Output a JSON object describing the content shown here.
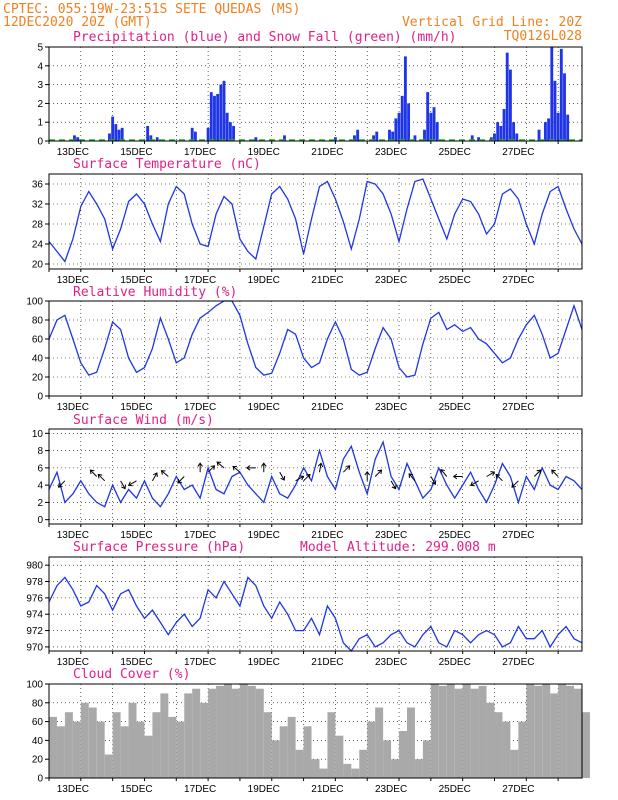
{
  "header": {
    "line1_left": "CPTEC:  055:19W-23:51S  SETE QUEDAS (MS)",
    "line2_left": "12DEC2020 20Z (GMT)",
    "line2_right": "Vertical Grid Line: 20Z",
    "line3_right": "TQ0126L028"
  },
  "colors": {
    "header": "#f08020",
    "titles": "#e0208a",
    "line": "#1f35e6",
    "snow": "#22b022",
    "cloud": "#a9a9a9"
  },
  "chart_data": [
    {
      "type": "bar",
      "title": "Precipitation (blue) and Snow Fall (green) (mm/h)",
      "ylim": [
        0,
        5
      ],
      "yticks": [
        0,
        1,
        2,
        3,
        4,
        5
      ],
      "x_tick_labels": [
        "13DEC",
        "15DEC",
        "17DEC",
        "19DEC",
        "21DEC",
        "23DEC",
        "25DEC",
        "27DEC"
      ],
      "series": [
        {
          "name": "Precipitation",
          "values": [
            [
              0.8,
              0.3
            ],
            [
              0.9,
              0.2
            ],
            [
              1.9,
              0.4
            ],
            [
              2.0,
              1.3
            ],
            [
              2.1,
              0.9
            ],
            [
              2.2,
              0.6
            ],
            [
              2.3,
              0.7
            ],
            [
              3.1,
              0.8
            ],
            [
              3.2,
              0.3
            ],
            [
              3.4,
              0.2
            ],
            [
              4.5,
              0.7
            ],
            [
              4.6,
              0.5
            ],
            [
              5.0,
              0.7
            ],
            [
              5.1,
              2.6
            ],
            [
              5.2,
              2.4
            ],
            [
              5.3,
              2.5
            ],
            [
              5.4,
              3.0
            ],
            [
              5.5,
              3.2
            ],
            [
              5.6,
              1.5
            ],
            [
              5.7,
              1.0
            ],
            [
              5.8,
              0.8
            ],
            [
              6.5,
              0.2
            ],
            [
              7.4,
              0.3
            ],
            [
              9.0,
              0.2
            ],
            [
              9.6,
              0.3
            ],
            [
              9.7,
              0.6
            ],
            [
              10.2,
              0.3
            ],
            [
              10.3,
              0.5
            ],
            [
              10.7,
              0.6
            ],
            [
              10.8,
              0.5
            ],
            [
              10.9,
              1.2
            ],
            [
              11.0,
              1.5
            ],
            [
              11.1,
              2.4
            ],
            [
              11.2,
              4.5
            ],
            [
              11.3,
              2.0
            ],
            [
              11.5,
              0.3
            ],
            [
              11.8,
              0.6
            ],
            [
              11.9,
              2.6
            ],
            [
              12.0,
              1.5
            ],
            [
              12.1,
              1.8
            ],
            [
              12.2,
              1.0
            ],
            [
              13.3,
              0.3
            ],
            [
              13.5,
              0.2
            ],
            [
              13.9,
              0.2
            ],
            [
              14.0,
              0.4
            ],
            [
              14.1,
              1.0
            ],
            [
              14.2,
              0.8
            ],
            [
              14.3,
              1.7
            ],
            [
              14.4,
              4.7
            ],
            [
              14.5,
              3.8
            ],
            [
              14.6,
              1.0
            ],
            [
              14.7,
              0.4
            ],
            [
              15.4,
              0.6
            ],
            [
              15.6,
              1.0
            ],
            [
              15.7,
              1.2
            ],
            [
              15.8,
              5.0
            ],
            [
              15.9,
              3.2
            ],
            [
              16.0,
              1.5
            ],
            [
              16.1,
              4.9
            ],
            [
              16.2,
              3.6
            ],
            [
              16.3,
              1.4
            ]
          ]
        },
        {
          "name": "Snow Fall",
          "values": []
        }
      ]
    },
    {
      "type": "line",
      "title": "Surface Temperature (nC)",
      "ylim": [
        19,
        38
      ],
      "yticks": [
        20,
        24,
        28,
        32,
        36
      ],
      "x_tick_labels": [
        "13DEC",
        "15DEC",
        "17DEC",
        "19DEC",
        "21DEC",
        "23DEC",
        "25DEC",
        "27DEC"
      ],
      "x": [
        0.0,
        0.25,
        0.5,
        0.75,
        1.0,
        1.25,
        1.5,
        1.75,
        2.0,
        2.25,
        2.5,
        2.75,
        3.0,
        3.25,
        3.5,
        3.75,
        4.0,
        4.25,
        4.5,
        4.75,
        5.0,
        5.25,
        5.5,
        5.75,
        6.0,
        6.25,
        6.5,
        6.75,
        7.0,
        7.25,
        7.5,
        7.75,
        8.0,
        8.25,
        8.5,
        8.75,
        9.0,
        9.25,
        9.5,
        9.75,
        10.0,
        10.25,
        10.5,
        10.75,
        11.0,
        11.25,
        11.5,
        11.75,
        12.0,
        12.25,
        12.5,
        12.75,
        13.0,
        13.25,
        13.5,
        13.75,
        14.0,
        14.25,
        14.5,
        14.75,
        15.0,
        15.25,
        15.5,
        15.75,
        16.0,
        16.25,
        16.5,
        16.75
      ],
      "values": [
        24.5,
        22.5,
        20.5,
        25.0,
        31.5,
        34.5,
        32.0,
        29.0,
        23.0,
        27.0,
        32.5,
        34.0,
        32.0,
        28.0,
        24.5,
        32.0,
        35.5,
        34.0,
        28.0,
        24.0,
        23.5,
        30.0,
        33.5,
        32.0,
        25.0,
        22.5,
        21.0,
        27.5,
        34.0,
        35.5,
        33.0,
        29.0,
        22.0,
        29.0,
        35.5,
        36.5,
        33.0,
        28.5,
        23.0,
        29.0,
        36.5,
        36.0,
        34.0,
        30.0,
        24.5,
        31.0,
        36.5,
        37.0,
        33.0,
        29.0,
        25.0,
        30.0,
        33.0,
        32.5,
        30.0,
        26.0,
        28.0,
        34.0,
        35.0,
        33.0,
        28.0,
        24.0,
        30.0,
        34.5,
        35.5,
        31.0,
        27.0,
        24.0
      ]
    },
    {
      "type": "line",
      "title": "Relative Humidity (%)",
      "ylim": [
        0,
        100
      ],
      "yticks": [
        0,
        20,
        40,
        60,
        80,
        100
      ],
      "x_tick_labels": [
        "13DEC",
        "15DEC",
        "17DEC",
        "19DEC",
        "21DEC",
        "23DEC",
        "25DEC",
        "27DEC"
      ],
      "x": [
        0.0,
        0.25,
        0.5,
        0.75,
        1.0,
        1.25,
        1.5,
        1.75,
        2.0,
        2.25,
        2.5,
        2.75,
        3.0,
        3.25,
        3.5,
        3.75,
        4.0,
        4.25,
        4.5,
        4.75,
        5.0,
        5.25,
        5.5,
        5.75,
        6.0,
        6.25,
        6.5,
        6.75,
        7.0,
        7.25,
        7.5,
        7.75,
        8.0,
        8.25,
        8.5,
        8.75,
        9.0,
        9.25,
        9.5,
        9.75,
        10.0,
        10.25,
        10.5,
        10.75,
        11.0,
        11.25,
        11.5,
        11.75,
        12.0,
        12.25,
        12.5,
        12.75,
        13.0,
        13.25,
        13.5,
        13.75,
        14.0,
        14.25,
        14.5,
        14.75,
        15.0,
        15.25,
        15.5,
        15.75,
        16.0,
        16.25,
        16.5,
        16.75
      ],
      "values": [
        60,
        80,
        85,
        60,
        35,
        22,
        25,
        50,
        78,
        70,
        40,
        25,
        30,
        50,
        82,
        60,
        35,
        40,
        65,
        82,
        88,
        95,
        100,
        100,
        85,
        55,
        30,
        22,
        24,
        45,
        70,
        65,
        40,
        30,
        35,
        60,
        78,
        60,
        28,
        22,
        25,
        50,
        72,
        60,
        30,
        20,
        22,
        55,
        82,
        88,
        70,
        75,
        68,
        72,
        60,
        55,
        45,
        35,
        40,
        60,
        75,
        85,
        65,
        40,
        45,
        70,
        95,
        70
      ]
    },
    {
      "type": "line",
      "title": "Surface Wind (m/s)",
      "ylim": [
        -0.5,
        10.5
      ],
      "yticks": [
        0,
        2,
        4,
        6,
        8,
        10
      ],
      "x_tick_labels": [
        "13DEC",
        "15DEC",
        "17DEC",
        "19DEC",
        "21DEC",
        "23DEC",
        "25DEC",
        "27DEC"
      ],
      "x": [
        0.0,
        0.25,
        0.5,
        0.75,
        1.0,
        1.25,
        1.5,
        1.75,
        2.0,
        2.25,
        2.5,
        2.75,
        3.0,
        3.25,
        3.5,
        3.75,
        4.0,
        4.25,
        4.5,
        4.75,
        5.0,
        5.25,
        5.5,
        5.75,
        6.0,
        6.25,
        6.5,
        6.75,
        7.0,
        7.25,
        7.5,
        7.75,
        8.0,
        8.25,
        8.5,
        8.75,
        9.0,
        9.25,
        9.5,
        9.75,
        10.0,
        10.25,
        10.5,
        10.75,
        11.0,
        11.25,
        11.5,
        11.75,
        12.0,
        12.25,
        12.5,
        12.75,
        13.0,
        13.25,
        13.5,
        13.75,
        14.0,
        14.25,
        14.5,
        14.75,
        15.0,
        15.25,
        15.5,
        15.75,
        16.0,
        16.25,
        16.5,
        16.75
      ],
      "values": [
        3.5,
        5.5,
        2.0,
        3.0,
        4.5,
        3.0,
        2.0,
        1.5,
        4.0,
        2.0,
        3.5,
        2.5,
        4.5,
        2.5,
        1.5,
        3.0,
        5.0,
        3.5,
        4.0,
        2.5,
        6.0,
        3.5,
        3.0,
        5.0,
        5.5,
        4.0,
        3.0,
        2.0,
        5.0,
        3.0,
        2.5,
        4.0,
        6.0,
        4.5,
        8.0,
        5.0,
        3.5,
        7.0,
        8.5,
        5.5,
        3.0,
        7.0,
        9.0,
        5.0,
        3.5,
        6.5,
        4.5,
        2.5,
        3.5,
        6.0,
        4.0,
        2.5,
        4.0,
        5.5,
        3.5,
        2.0,
        4.0,
        6.5,
        5.0,
        2.0,
        5.0,
        3.5,
        6.0,
        4.0,
        3.5,
        5.0,
        4.5,
        3.5
      ],
      "arrows": [
        [
          0.5,
          4.5,
          225
        ],
        [
          1.5,
          5.0,
          135
        ],
        [
          1.75,
          4.5,
          135
        ],
        [
          2.25,
          4.5,
          300
        ],
        [
          2.75,
          4.5,
          210
        ],
        [
          3.25,
          4.5,
          60
        ],
        [
          3.75,
          5.0,
          140
        ],
        [
          4.25,
          5.0,
          225
        ],
        [
          4.75,
          5.5,
          90
        ],
        [
          5.0,
          5.5,
          45
        ],
        [
          5.5,
          6.0,
          140
        ],
        [
          6.0,
          5.5,
          140
        ],
        [
          6.5,
          6.0,
          180
        ],
        [
          6.75,
          5.5,
          90
        ],
        [
          7.25,
          5.5,
          300
        ],
        [
          7.75,
          4.5,
          30
        ],
        [
          8.0,
          4.5,
          45
        ],
        [
          8.5,
          5.5,
          80
        ],
        [
          9.25,
          5.5,
          45
        ],
        [
          10.0,
          4.5,
          90
        ],
        [
          10.25,
          5.0,
          45
        ],
        [
          10.75,
          4.5,
          300
        ],
        [
          11.5,
          4.5,
          130
        ],
        [
          12.0,
          5.0,
          300
        ],
        [
          12.5,
          5.0,
          130
        ],
        [
          13.0,
          5.0,
          180
        ],
        [
          13.5,
          4.5,
          210
        ],
        [
          13.75,
          5.0,
          30
        ],
        [
          14.25,
          4.5,
          135
        ],
        [
          14.75,
          4.5,
          225
        ],
        [
          15.25,
          5.0,
          45
        ],
        [
          16.0,
          5.0,
          135
        ]
      ]
    },
    {
      "type": "line",
      "title": "Surface Pressure (hPa)",
      "annotation": "Model Altitude: 299.008 m",
      "ylim": [
        969.5,
        981
      ],
      "yticks": [
        970,
        972,
        974,
        976,
        978,
        980
      ],
      "x_tick_labels": [
        "13DEC",
        "15DEC",
        "17DEC",
        "19DEC",
        "21DEC",
        "23DEC",
        "25DEC",
        "27DEC"
      ],
      "x": [
        0.0,
        0.25,
        0.5,
        0.75,
        1.0,
        1.25,
        1.5,
        1.75,
        2.0,
        2.25,
        2.5,
        2.75,
        3.0,
        3.25,
        3.5,
        3.75,
        4.0,
        4.25,
        4.5,
        4.75,
        5.0,
        5.25,
        5.5,
        5.75,
        6.0,
        6.25,
        6.5,
        6.75,
        7.0,
        7.25,
        7.5,
        7.75,
        8.0,
        8.25,
        8.5,
        8.75,
        9.0,
        9.25,
        9.5,
        9.75,
        10.0,
        10.25,
        10.5,
        10.75,
        11.0,
        11.25,
        11.5,
        11.75,
        12.0,
        12.25,
        12.5,
        12.75,
        13.0,
        13.25,
        13.5,
        13.75,
        14.0,
        14.25,
        14.5,
        14.75,
        15.0,
        15.25,
        15.5,
        15.75,
        16.0,
        16.25,
        16.5,
        16.75
      ],
      "values": [
        975.5,
        977.5,
        978.5,
        977.0,
        975.0,
        975.5,
        977.5,
        976.5,
        974.5,
        976.5,
        977.0,
        975.0,
        973.5,
        974.5,
        973.0,
        971.5,
        973.0,
        974.0,
        972.5,
        973.5,
        977.0,
        976.0,
        978.0,
        976.5,
        975.0,
        978.5,
        977.5,
        975.0,
        973.5,
        975.5,
        974.0,
        972.0,
        972.0,
        973.5,
        971.5,
        975.0,
        973.5,
        970.5,
        969.5,
        971.0,
        971.5,
        970.0,
        970.5,
        971.5,
        972.0,
        970.5,
        970.0,
        971.5,
        972.5,
        970.5,
        970.0,
        972.0,
        971.5,
        970.5,
        971.5,
        972.0,
        971.5,
        970.0,
        970.5,
        972.5,
        971.0,
        971.0,
        972.0,
        970.0,
        971.5,
        972.5,
        971.0,
        970.5
      ]
    },
    {
      "type": "bar",
      "title": "Cloud Cover (%)",
      "ylim": [
        0,
        100
      ],
      "yticks": [
        0,
        20,
        40,
        60,
        80,
        100
      ],
      "x_tick_labels": [
        "13DEC",
        "15DEC",
        "17DEC",
        "19DEC",
        "21DEC",
        "23DEC",
        "25DEC",
        "27DEC"
      ],
      "x": [
        0.0,
        0.25,
        0.5,
        0.75,
        1.0,
        1.25,
        1.5,
        1.75,
        2.0,
        2.25,
        2.5,
        2.75,
        3.0,
        3.25,
        3.5,
        3.75,
        4.0,
        4.25,
        4.5,
        4.75,
        5.0,
        5.25,
        5.5,
        5.75,
        6.0,
        6.25,
        6.5,
        6.75,
        7.0,
        7.25,
        7.5,
        7.75,
        8.0,
        8.25,
        8.5,
        8.75,
        9.0,
        9.25,
        9.5,
        9.75,
        10.0,
        10.25,
        10.5,
        10.75,
        11.0,
        11.25,
        11.5,
        11.75,
        12.0,
        12.25,
        12.5,
        12.75,
        13.0,
        13.25,
        13.5,
        13.75,
        14.0,
        14.25,
        14.5,
        14.75,
        15.0,
        15.25,
        15.5,
        15.75,
        16.0,
        16.25,
        16.5,
        16.75
      ],
      "values": [
        65,
        55,
        70,
        60,
        80,
        75,
        60,
        25,
        70,
        55,
        80,
        60,
        45,
        70,
        90,
        65,
        60,
        90,
        95,
        80,
        95,
        98,
        100,
        95,
        100,
        98,
        95,
        70,
        40,
        55,
        65,
        30,
        55,
        20,
        10,
        70,
        45,
        15,
        10,
        30,
        60,
        75,
        40,
        20,
        50,
        75,
        20,
        40,
        100,
        98,
        100,
        95,
        100,
        95,
        98,
        80,
        70,
        60,
        30,
        60,
        100,
        98,
        100,
        90,
        100,
        98,
        95,
        70
      ]
    }
  ]
}
